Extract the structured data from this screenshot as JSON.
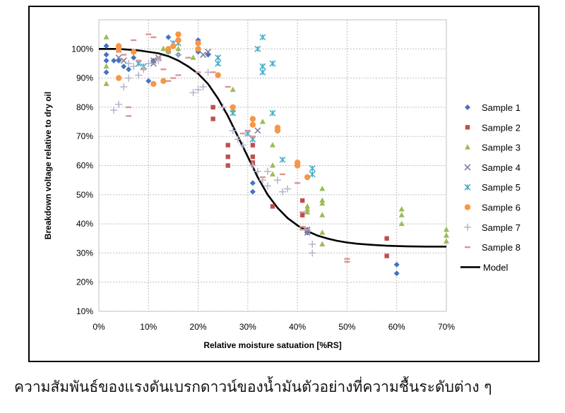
{
  "caption": "ความสัมพันธ์ของแรงดันเบรกดาวน์ของน้ำมันตัวอย่างที่ความชื้นระดับต่าง ๆ",
  "chart_data": {
    "type": "scatter",
    "title": "",
    "xlabel": "Relative moisture satuation [%RS]",
    "ylabel": "Breakdown voltage  relative to dry oil",
    "xlim": [
      0,
      70
    ],
    "ylim": [
      10,
      110
    ],
    "x_ticks": [
      0,
      10,
      20,
      30,
      40,
      50,
      60,
      70
    ],
    "y_ticks": [
      10,
      20,
      30,
      40,
      50,
      60,
      70,
      80,
      90,
      100
    ],
    "x_tick_labels": [
      "0%",
      "10%",
      "20%",
      "30%",
      "40%",
      "50%",
      "60%",
      "70%"
    ],
    "y_tick_labels": [
      "10%",
      "20%",
      "30%",
      "40%",
      "50%",
      "60%",
      "70%",
      "80%",
      "90%",
      "100%"
    ],
    "grid": true,
    "legend_position": "right",
    "series": [
      {
        "name": "Sample 1",
        "marker": "diamond",
        "color": "#4472C4",
        "points": [
          [
            1.5,
            101
          ],
          [
            1.5,
            98
          ],
          [
            1.5,
            96
          ],
          [
            1.5,
            92
          ],
          [
            3,
            96
          ],
          [
            4,
            96
          ],
          [
            5,
            94
          ],
          [
            6,
            93
          ],
          [
            7,
            97
          ],
          [
            10,
            89
          ],
          [
            11,
            96
          ],
          [
            14,
            99
          ],
          [
            14,
            104
          ],
          [
            16,
            98
          ],
          [
            20,
            99
          ],
          [
            20,
            103
          ],
          [
            22,
            98
          ],
          [
            31,
            51
          ],
          [
            31,
            54
          ],
          [
            42,
            37
          ],
          [
            42,
            38
          ],
          [
            60,
            26
          ],
          [
            60,
            23
          ]
        ]
      },
      {
        "name": "Sample 2",
        "marker": "square",
        "color": "#C0504D",
        "points": [
          [
            23,
            80
          ],
          [
            23,
            76
          ],
          [
            26,
            67
          ],
          [
            26,
            63
          ],
          [
            26,
            60
          ],
          [
            31,
            67
          ],
          [
            31,
            63
          ],
          [
            31,
            61
          ],
          [
            35,
            46
          ],
          [
            41,
            43
          ],
          [
            41,
            48
          ],
          [
            58,
            35
          ],
          [
            58,
            29
          ]
        ]
      },
      {
        "name": "Sample 3",
        "marker": "triangle",
        "color": "#9BBB59",
        "points": [
          [
            1.5,
            104
          ],
          [
            1.5,
            94
          ],
          [
            1.5,
            88
          ],
          [
            13,
            100
          ],
          [
            14,
            99
          ],
          [
            16,
            100
          ],
          [
            19,
            97
          ],
          [
            20,
            100
          ],
          [
            27,
            86
          ],
          [
            27,
            79
          ],
          [
            33,
            75
          ],
          [
            35,
            67
          ],
          [
            35,
            60
          ],
          [
            35,
            57
          ],
          [
            42,
            45
          ],
          [
            42,
            44
          ],
          [
            42,
            46
          ],
          [
            45,
            52
          ],
          [
            45,
            48
          ],
          [
            45,
            47
          ],
          [
            45,
            43
          ],
          [
            45,
            37
          ],
          [
            45,
            33
          ],
          [
            61,
            45
          ],
          [
            61,
            43
          ],
          [
            61,
            40
          ],
          [
            70,
            38
          ],
          [
            70,
            36
          ],
          [
            70,
            34
          ]
        ]
      },
      {
        "name": "Sample 4",
        "marker": "x",
        "color": "#7F7F9F",
        "points": [
          [
            4,
            97
          ],
          [
            5,
            96
          ],
          [
            11,
            96
          ],
          [
            11,
            95
          ],
          [
            12,
            97
          ],
          [
            21,
            98
          ],
          [
            22,
            99
          ],
          [
            32,
            72
          ],
          [
            42,
            38
          ],
          [
            42,
            37
          ]
        ]
      },
      {
        "name": "Sample 5",
        "marker": "star",
        "color": "#4BACC6",
        "points": [
          [
            8,
            95
          ],
          [
            9,
            94
          ],
          [
            15,
            102
          ],
          [
            16,
            102
          ],
          [
            24,
            97
          ],
          [
            24,
            95
          ],
          [
            27,
            78
          ],
          [
            30,
            71
          ],
          [
            31,
            69
          ],
          [
            32,
            100
          ],
          [
            33,
            104
          ],
          [
            33,
            94
          ],
          [
            33,
            92
          ],
          [
            35,
            95
          ],
          [
            35,
            78
          ],
          [
            37,
            62
          ],
          [
            43,
            59
          ],
          [
            43,
            57
          ]
        ]
      },
      {
        "name": "Sample 6",
        "marker": "circle",
        "color": "#F79646",
        "points": [
          [
            4,
            101
          ],
          [
            4,
            100
          ],
          [
            4,
            90
          ],
          [
            7,
            99
          ],
          [
            11,
            88
          ],
          [
            13,
            89
          ],
          [
            14,
            100
          ],
          [
            15,
            101
          ],
          [
            16,
            105
          ],
          [
            16,
            103
          ],
          [
            20,
            102
          ],
          [
            20,
            100
          ],
          [
            24,
            91
          ],
          [
            27,
            80
          ],
          [
            31,
            76
          ],
          [
            31,
            74
          ],
          [
            36,
            73
          ],
          [
            36,
            72
          ],
          [
            40,
            61
          ],
          [
            40,
            60
          ],
          [
            42,
            56
          ]
        ]
      },
      {
        "name": "Sample 7",
        "marker": "plus",
        "color": "#B4B4CC",
        "points": [
          [
            3,
            79
          ],
          [
            4,
            81
          ],
          [
            5,
            87
          ],
          [
            6,
            90
          ],
          [
            6,
            95
          ],
          [
            7,
            94
          ],
          [
            8,
            91
          ],
          [
            9,
            93
          ],
          [
            10,
            95
          ],
          [
            12,
            96
          ],
          [
            16,
            98
          ],
          [
            19,
            85
          ],
          [
            20,
            86
          ],
          [
            21,
            87
          ],
          [
            22,
            92
          ],
          [
            25,
            80
          ],
          [
            27,
            72
          ],
          [
            28,
            69
          ],
          [
            29,
            67
          ],
          [
            31,
            60
          ],
          [
            32,
            58
          ],
          [
            33,
            55
          ],
          [
            34,
            58
          ],
          [
            34,
            53
          ],
          [
            36,
            55
          ],
          [
            37,
            51
          ],
          [
            38,
            52
          ],
          [
            43,
            33
          ],
          [
            43,
            30
          ]
        ]
      },
      {
        "name": "Sample 8",
        "marker": "dash",
        "color": "#D99694",
        "points": [
          [
            4,
            99
          ],
          [
            5,
            98
          ],
          [
            6,
            80
          ],
          [
            6,
            77
          ],
          [
            7,
            103
          ],
          [
            8,
            96
          ],
          [
            9,
            93
          ],
          [
            10,
            105
          ],
          [
            11,
            104
          ],
          [
            12,
            97
          ],
          [
            13,
            93
          ],
          [
            14,
            89
          ],
          [
            15,
            90
          ],
          [
            16,
            91
          ],
          [
            18,
            97
          ],
          [
            20,
            92
          ],
          [
            23,
            92
          ],
          [
            26,
            87
          ],
          [
            29,
            71
          ],
          [
            30,
            72
          ],
          [
            31,
            70
          ],
          [
            33,
            56
          ],
          [
            37,
            57
          ],
          [
            40,
            54
          ],
          [
            41,
            44
          ],
          [
            41,
            39
          ],
          [
            41,
            38
          ],
          [
            42,
            38
          ],
          [
            50,
            28
          ],
          [
            50,
            27
          ]
        ]
      }
    ],
    "model": {
      "name": "Model",
      "color": "#000000",
      "x": [
        0,
        4,
        8,
        12,
        14,
        16,
        18,
        20,
        22,
        24,
        26,
        28,
        30,
        32,
        34,
        36,
        38,
        40,
        42,
        44,
        46,
        48,
        50,
        52,
        55,
        58,
        62,
        66,
        70
      ],
      "y": [
        100,
        100,
        99.5,
        98.5,
        97.5,
        96,
        94,
        91.5,
        88,
        83,
        77,
        70,
        63,
        56,
        50,
        45.5,
        42,
        39.5,
        37.5,
        36,
        35,
        34.2,
        33.6,
        33.2,
        32.8,
        32.5,
        32.3,
        32.2,
        32.2
      ]
    }
  }
}
